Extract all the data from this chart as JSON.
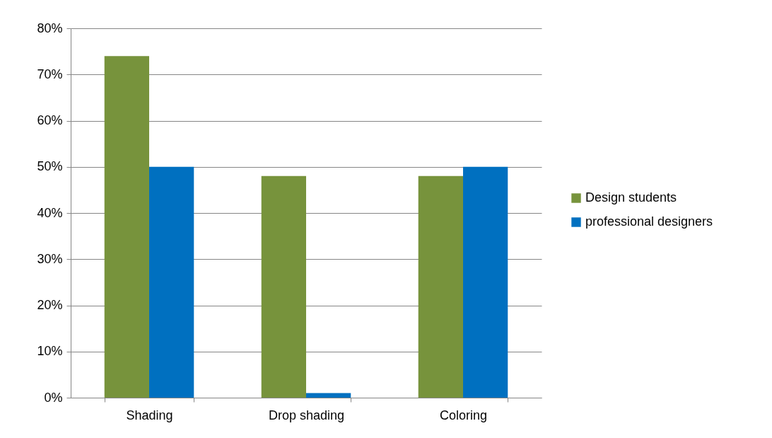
{
  "chart_data": {
    "type": "bar",
    "categories": [
      "Shading",
      "Drop shading",
      "Coloring"
    ],
    "series": [
      {
        "name": "Design students",
        "color": "#77933c",
        "values": [
          74,
          48,
          48
        ]
      },
      {
        "name": "professional designers",
        "color": "#0070c0",
        "values": [
          50,
          1,
          50
        ]
      }
    ],
    "ylim": [
      0,
      80
    ],
    "yticks": [
      {
        "value": 0,
        "label": "0%"
      },
      {
        "value": 10,
        "label": "10%"
      },
      {
        "value": 20,
        "label": "20%"
      },
      {
        "value": 30,
        "label": "30%"
      },
      {
        "value": 40,
        "label": "40%"
      },
      {
        "value": 50,
        "label": "50%"
      },
      {
        "value": 60,
        "label": "60%"
      },
      {
        "value": 70,
        "label": "70%"
      },
      {
        "value": 80,
        "label": "80%"
      }
    ],
    "grid": "y",
    "legend": "right"
  }
}
